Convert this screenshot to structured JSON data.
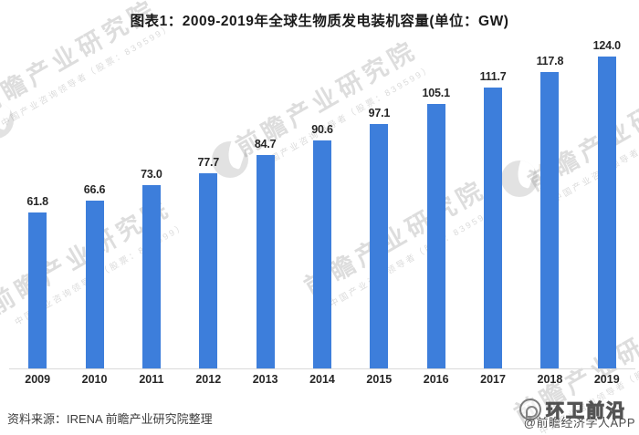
{
  "title": "图表1：2009-2019年全球生物质发电装机容量(单位：GW)",
  "chart_data": {
    "type": "bar",
    "title": "图表1：2009-2019年全球生物质发电装机容量(单位：GW)",
    "unit": "GW",
    "categories": [
      "2009",
      "2010",
      "2011",
      "2012",
      "2013",
      "2014",
      "2015",
      "2016",
      "2017",
      "2018",
      "2019"
    ],
    "values": [
      61.8,
      66.6,
      73.0,
      77.7,
      84.7,
      90.6,
      97.1,
      105.1,
      111.7,
      117.8,
      124.0
    ],
    "value_labels": [
      "61.8",
      "66.6",
      "73.0",
      "77.7",
      "84.7",
      "90.6",
      "97.1",
      "105.1",
      "111.7",
      "117.8",
      "124.0"
    ],
    "xlabel": "",
    "ylabel": "",
    "ylim": [
      0,
      130
    ],
    "grid": false,
    "legend": "none",
    "y_axis_visible": false,
    "x_axis_line": true,
    "data_labels_shown": true
  },
  "footer": {
    "source_text": "资料来源：IRENA 前瞻产业研究院整理",
    "credit_text": "@前瞻经济学人APP"
  },
  "watermark": {
    "brand_text": "前瞻产业研究院",
    "brand_subtext": "中国产业咨询领导者（股票：839599）",
    "overlay_badge_text": "环卫前沿"
  },
  "colors": {
    "bar": "#3D7EDB",
    "axis_line": "#D9D9D9",
    "label_text": "#262626",
    "title_text": "#1A1A1A"
  }
}
